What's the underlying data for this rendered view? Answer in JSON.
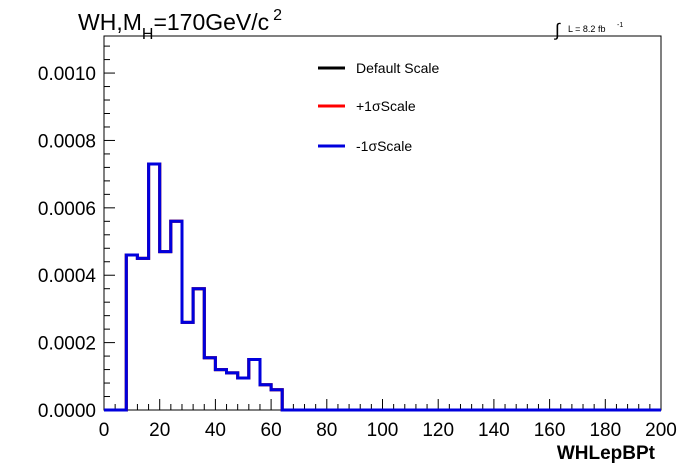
{
  "chart_data": {
    "type": "line",
    "title_parts": {
      "main": "WH,M",
      "sub": "H",
      "rest": "=170GeV/c",
      "sup": "2"
    },
    "lumi_parts": {
      "integral": "∫",
      "text": "L = 8.2 fb",
      "sup": "-1"
    },
    "xlabel": "WHLepBPt",
    "ylabel": "",
    "xlim": [
      0,
      200
    ],
    "ylim": [
      0,
      0.00111
    ],
    "x_ticks": [
      "0",
      "20",
      "40",
      "60",
      "80",
      "100",
      "120",
      "140",
      "160",
      "180",
      "200"
    ],
    "y_ticks": [
      "0.0000",
      "0.0002",
      "0.0004",
      "0.0006",
      "0.0008",
      "0.0010"
    ],
    "legend_position": "top-center",
    "bin_edges": [
      0,
      8,
      12,
      16,
      20,
      24,
      28,
      32,
      36,
      40,
      44,
      48,
      52,
      56,
      60,
      64,
      200
    ],
    "series": [
      {
        "name": "Default Scale",
        "color": "#000000",
        "values": [
          0,
          0.00046,
          0.00045,
          0.00073,
          0.00047,
          0.00056,
          0.00026,
          0.00036,
          0.000155,
          0.00012,
          0.00011,
          9.5e-05,
          0.00015,
          7.5e-05,
          6e-05,
          0
        ]
      },
      {
        "name": "+1σScale",
        "color": "#ff0000",
        "values": [
          0,
          0.00046,
          0.00045,
          0.00073,
          0.00047,
          0.00056,
          0.00026,
          0.00036,
          0.000155,
          0.00012,
          0.00011,
          9.5e-05,
          0.00015,
          7.5e-05,
          6e-05,
          0
        ]
      },
      {
        "name": "-1σScale",
        "color": "#0000dd",
        "values": [
          0,
          0.00046,
          0.00045,
          0.00073,
          0.00047,
          0.00056,
          0.00026,
          0.00036,
          0.000155,
          0.00012,
          0.00011,
          9.5e-05,
          0.00015,
          7.5e-05,
          6e-05,
          0
        ]
      }
    ]
  }
}
